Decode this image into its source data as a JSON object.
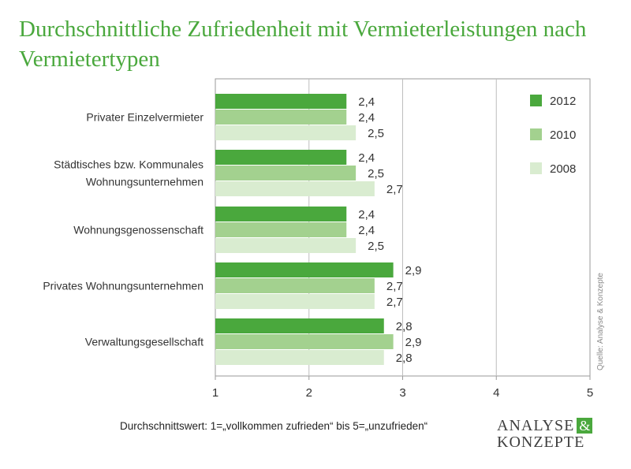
{
  "title": "Durchschnittliche Zufriedenheit mit Vermieterleistungen nach Vermietertypen",
  "note": "Durchschnittswert: 1=„vollkommen zufrieden“ bis 5=„unzufrieden“",
  "source": "Quelle: Analyse & Konzepte",
  "logo": {
    "line1": "ANALYSE",
    "amp": "&",
    "line2": "KONZEPTE"
  },
  "colors": {
    "title": "#4aa83d",
    "2012": "#4aa83d",
    "2010": "#a3d18f",
    "2008": "#d9ecd0"
  },
  "chart_data": {
    "type": "bar",
    "orientation": "horizontal",
    "title": "Durchschnittliche Zufriedenheit mit Vermieterleistungen nach Vermietertypen",
    "categories": [
      [
        "Privater Einzelvermieter"
      ],
      [
        "Städtisches bzw. Kommunales",
        "Wohnungsunternehmen"
      ],
      [
        "Wohnungsgenossenschaft"
      ],
      [
        "Privates Wohnungsunternehmen"
      ],
      [
        "Verwaltungsgesellschaft"
      ]
    ],
    "series": [
      {
        "name": "2012",
        "color": "#4aa83d",
        "values": [
          2.4,
          2.4,
          2.4,
          2.9,
          2.8
        ],
        "labels": [
          "2,4",
          "2,4",
          "2,4",
          "2,9",
          "2,8"
        ]
      },
      {
        "name": "2010",
        "color": "#a3d18f",
        "values": [
          2.4,
          2.5,
          2.4,
          2.7,
          2.9
        ],
        "labels": [
          "2,4",
          "2,5",
          "2,4",
          "2,7",
          "2,9"
        ]
      },
      {
        "name": "2008",
        "color": "#d9ecd0",
        "values": [
          2.5,
          2.7,
          2.5,
          2.7,
          2.8
        ],
        "labels": [
          "2,5",
          "2,7",
          "2,5",
          "2,7",
          "2,8"
        ]
      }
    ],
    "xlim": [
      1,
      5
    ],
    "xticks": [
      "1",
      "2",
      "3",
      "4",
      "5"
    ],
    "grid": true,
    "legend": "top-right"
  }
}
